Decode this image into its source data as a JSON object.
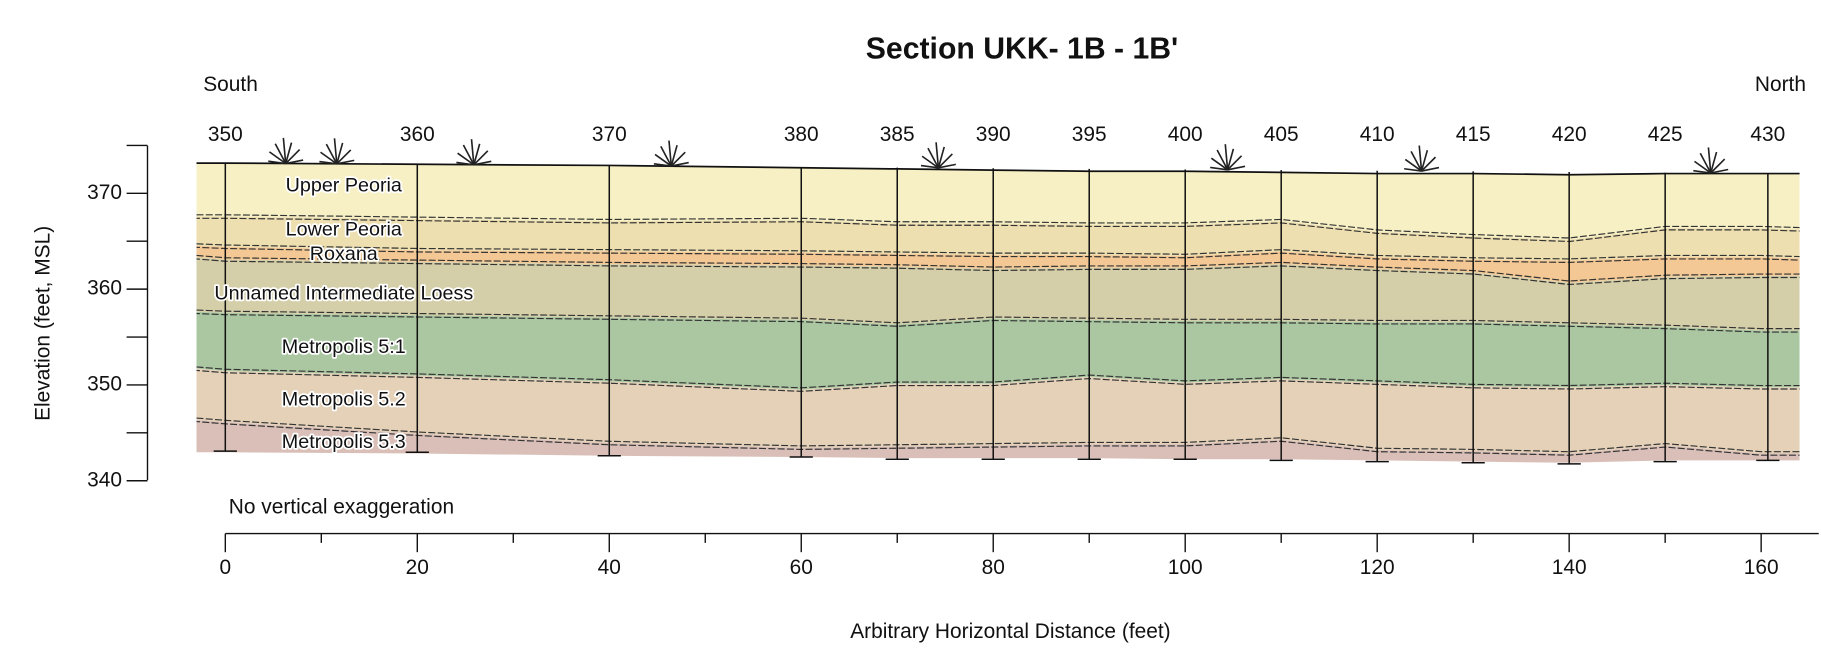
{
  "title": "Section UKK- 1B - 1B'",
  "orientation": {
    "left": "South",
    "right": "North"
  },
  "borings": [
    350,
    360,
    370,
    380,
    385,
    390,
    395,
    400,
    405,
    410,
    415,
    420,
    425,
    430
  ],
  "layers": [
    "Upper Peoria",
    "Lower Peoria",
    "Roxana",
    "Unnamed Intermediate Loess",
    "Metropolis 5:1",
    "Metropolis 5.2",
    "Metropolis 5.3"
  ],
  "y_axis": {
    "label": "Elevation (feet, MSL)",
    "ticks": [
      370,
      360,
      350,
      340
    ]
  },
  "x_axis": {
    "label": "Arbitrary Horizontal Distance (feet)",
    "ticks": [
      0,
      20,
      40,
      60,
      80,
      100,
      120,
      140,
      160
    ]
  },
  "note": "No vertical exaggeration"
}
